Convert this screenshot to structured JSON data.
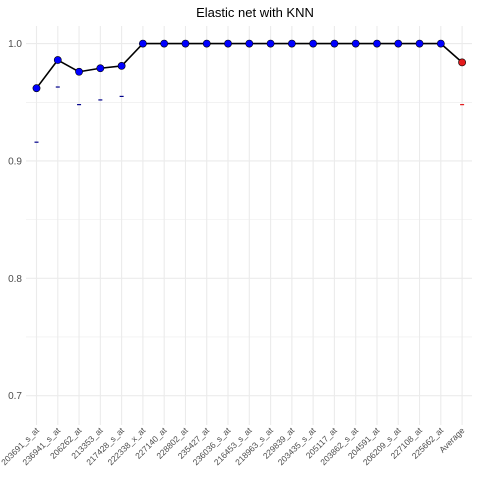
{
  "chart_data": {
    "type": "line",
    "title": "Elastic net  with KNN",
    "xlabel": "",
    "ylabel": "",
    "ylim": [
      0.675,
      1.015
    ],
    "yticks": [
      0.7,
      0.8,
      0.9,
      1.0
    ],
    "ytick_labels": [
      "0.7",
      "0.8",
      "0.9",
      "1.0"
    ],
    "grid": true,
    "legend": "none",
    "categories": [
      "203691_s_at",
      "236941_s_at",
      "206262_at",
      "213353_at",
      "217428_s_at",
      "222338_x_at",
      "227140_at",
      "228802_at",
      "235427_at",
      "236036_s_at",
      "216453_s_at",
      "218963_s_at",
      "229839_at",
      "203435_s_at",
      "205117_at",
      "203862_s_at",
      "204591_at",
      "206209_s_at",
      "227108_at",
      "225662_at",
      "Average"
    ],
    "series": [
      {
        "values": [
          0.962,
          0.986,
          0.976,
          0.979,
          0.981,
          1.0,
          1.0,
          1.0,
          1.0,
          1.0,
          1.0,
          1.0,
          1.0,
          1.0,
          1.0,
          1.0,
          1.0,
          1.0,
          1.0,
          1.0,
          0.984
        ],
        "lower": [
          0.916,
          0.963,
          0.948,
          0.952,
          0.955,
          null,
          null,
          null,
          null,
          null,
          null,
          null,
          null,
          null,
          null,
          null,
          null,
          null,
          null,
          null,
          0.948
        ],
        "colors": {
          "line": "#000000",
          "point": "#0000ff",
          "average_point": "#e41a1c",
          "lower_tick": "#00008b",
          "average_lower_tick": "#e41a1c"
        }
      }
    ],
    "colors": {
      "grid": "#ebebeb",
      "background": "#ffffff",
      "text": "#4d4d4d"
    }
  }
}
